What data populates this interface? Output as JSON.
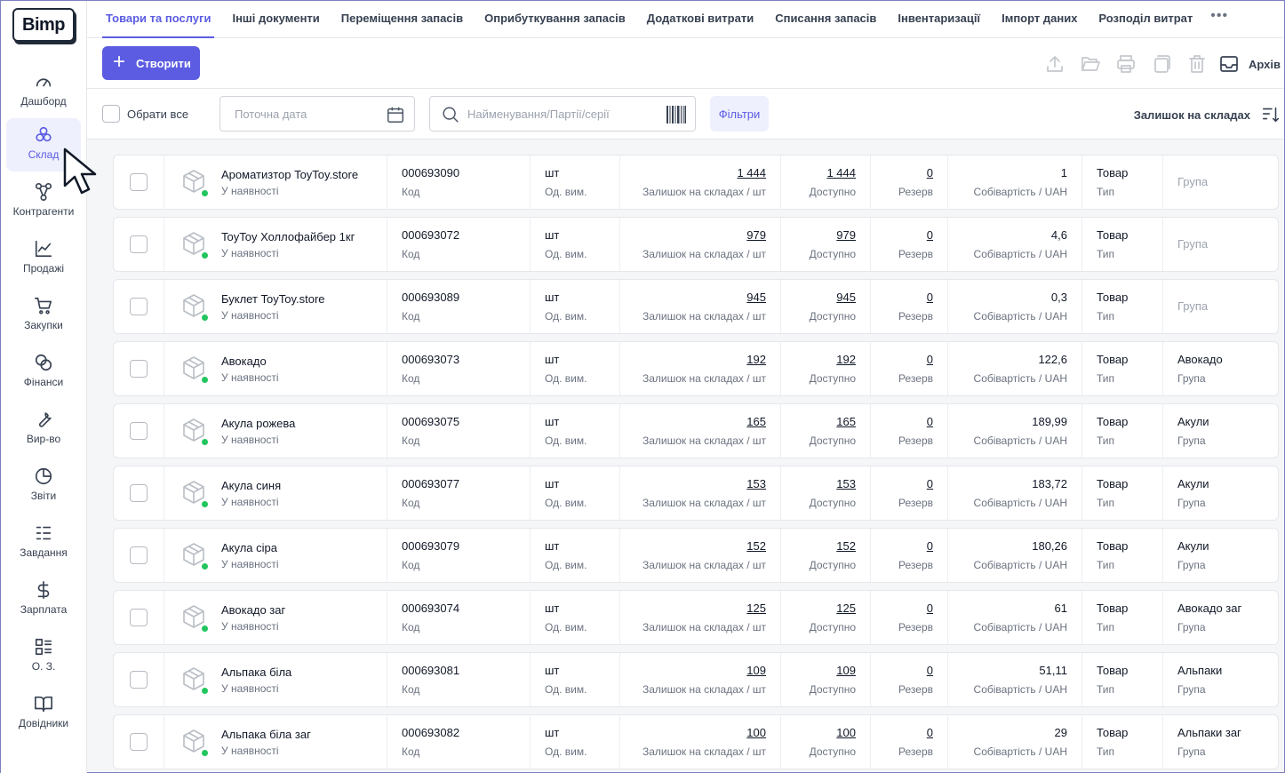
{
  "logo": "Bimp",
  "sidebar": {
    "items": [
      {
        "label": "Дашборд",
        "icon": "gauge-icon"
      },
      {
        "label": "Склад",
        "icon": "boxes-icon",
        "active": true
      },
      {
        "label": "Контрагенти",
        "icon": "network-icon"
      },
      {
        "label": "Продажі",
        "icon": "chart-line-icon"
      },
      {
        "label": "Закупки",
        "icon": "cart-icon"
      },
      {
        "label": "Фінанси",
        "icon": "coins-icon"
      },
      {
        "label": "Вир-во",
        "icon": "wrench-icon"
      },
      {
        "label": "Звіти",
        "icon": "pie-chart-icon"
      },
      {
        "label": "Завдання",
        "icon": "checklist-icon"
      },
      {
        "label": "Зарплата",
        "icon": "dollar-icon"
      },
      {
        "label": "О. З.",
        "icon": "assets-icon"
      },
      {
        "label": "Довідники",
        "icon": "book-icon"
      }
    ]
  },
  "tabs": [
    {
      "label": "Товари та послуги",
      "active": true
    },
    {
      "label": "Інші документи"
    },
    {
      "label": "Переміщення запасів"
    },
    {
      "label": "Оприбуткування запасів"
    },
    {
      "label": "Додаткові витрати"
    },
    {
      "label": "Списання запасів"
    },
    {
      "label": "Інвентаризації"
    },
    {
      "label": "Імпорт даних"
    },
    {
      "label": "Розподіл витрат"
    }
  ],
  "tabs_more": "•••",
  "toolbar": {
    "create_label": "Створити",
    "archive_label": "Архів"
  },
  "filters": {
    "select_all": "Обрати все",
    "date_placeholder": "Поточна дата",
    "search_placeholder": "Найменування/Партії/серії",
    "filters_button": "Фільтри",
    "stock_sort": "Залишок на складах"
  },
  "labels": {
    "code": "Код",
    "unit": "Од. вим.",
    "stock": "Залишок на складах / шт",
    "available": "Доступно",
    "reserve": "Резерв",
    "cost": "Собівартість / UAH",
    "type": "Тип",
    "group": "Група"
  },
  "colors": {
    "accent": "#5b5ce2",
    "status_in_stock": "#22c55e"
  },
  "products": [
    {
      "name": "Ароматизтор ToyToy.store",
      "status": "У наявності",
      "code": "000693090",
      "unit": "шт",
      "stock": "1 444",
      "available": "1 444",
      "reserve": "0",
      "cost": "1",
      "type": "Товар",
      "group": ""
    },
    {
      "name": "ToyToy Холлофайбер 1кг",
      "status": "У наявності",
      "code": "000693072",
      "unit": "шт",
      "stock": "979",
      "available": "979",
      "reserve": "0",
      "cost": "4,6",
      "type": "Товар",
      "group": ""
    },
    {
      "name": "Буклет ToyToy.store",
      "status": "У наявності",
      "code": "000693089",
      "unit": "шт",
      "stock": "945",
      "available": "945",
      "reserve": "0",
      "cost": "0,3",
      "type": "Товар",
      "group": ""
    },
    {
      "name": "Авокадо",
      "status": "У наявності",
      "code": "000693073",
      "unit": "шт",
      "stock": "192",
      "available": "192",
      "reserve": "0",
      "cost": "122,6",
      "type": "Товар",
      "group": "Авокадо"
    },
    {
      "name": "Акула рожева",
      "status": "У наявності",
      "code": "000693075",
      "unit": "шт",
      "stock": "165",
      "available": "165",
      "reserve": "0",
      "cost": "189,99",
      "type": "Товар",
      "group": "Акули"
    },
    {
      "name": "Акула синя",
      "status": "У наявності",
      "code": "000693077",
      "unit": "шт",
      "stock": "153",
      "available": "153",
      "reserve": "0",
      "cost": "183,72",
      "type": "Товар",
      "group": "Акули"
    },
    {
      "name": "Акула сіра",
      "status": "У наявності",
      "code": "000693079",
      "unit": "шт",
      "stock": "152",
      "available": "152",
      "reserve": "0",
      "cost": "180,26",
      "type": "Товар",
      "group": "Акули"
    },
    {
      "name": "Авокадо заг",
      "status": "У наявності",
      "code": "000693074",
      "unit": "шт",
      "stock": "125",
      "available": "125",
      "reserve": "0",
      "cost": "61",
      "type": "Товар",
      "group": "Авокадо заг"
    },
    {
      "name": "Альпака біла",
      "status": "У наявності",
      "code": "000693081",
      "unit": "шт",
      "stock": "109",
      "available": "109",
      "reserve": "0",
      "cost": "51,11",
      "type": "Товар",
      "group": "Альпаки"
    },
    {
      "name": "Альпака біла заг",
      "status": "У наявності",
      "code": "000693082",
      "unit": "шт",
      "stock": "100",
      "available": "100",
      "reserve": "0",
      "cost": "29",
      "type": "Товар",
      "group": "Альпаки заг"
    }
  ]
}
